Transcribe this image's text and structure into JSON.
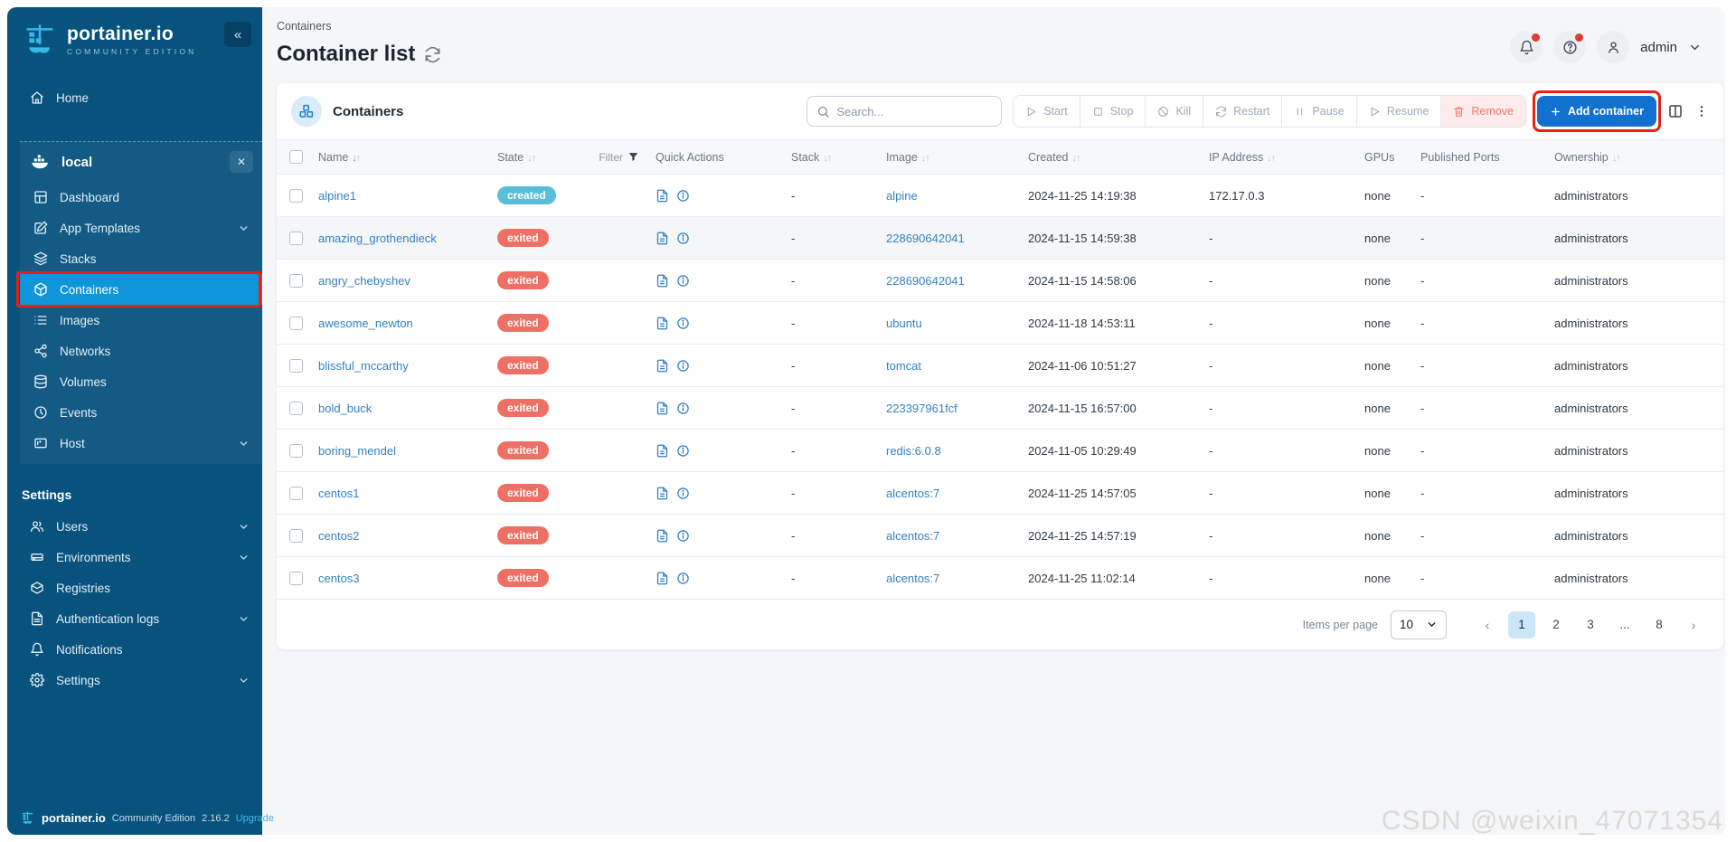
{
  "sidebar": {
    "logo_title": "portainer.io",
    "logo_subtitle": "COMMUNITY EDITION",
    "collapse_icon": "«",
    "home_label": "Home",
    "environment": {
      "name": "local",
      "items": [
        {
          "label": "Dashboard"
        },
        {
          "label": "App Templates",
          "chevron": true
        },
        {
          "label": "Stacks"
        },
        {
          "label": "Containers",
          "active": true,
          "annotated": true
        },
        {
          "label": "Images"
        },
        {
          "label": "Networks"
        },
        {
          "label": "Volumes"
        },
        {
          "label": "Events"
        },
        {
          "label": "Host",
          "chevron": true
        }
      ]
    },
    "settings_section": {
      "label": "Settings",
      "items": [
        {
          "label": "Users",
          "chevron": true
        },
        {
          "label": "Environments",
          "chevron": true
        },
        {
          "label": "Registries"
        },
        {
          "label": "Authentication logs",
          "chevron": true
        },
        {
          "label": "Notifications"
        },
        {
          "label": "Settings",
          "chevron": true
        }
      ]
    },
    "footer": {
      "brand": "portainer.io",
      "edition": "Community Edition",
      "version": "2.16.2",
      "upgrade_label": "Upgrade"
    }
  },
  "header": {
    "breadcrumb": "Containers",
    "title": "Container list",
    "user_name": "admin"
  },
  "toolbar": {
    "panel_title": "Containers",
    "search_placeholder": "Search...",
    "search_value": "",
    "actions": [
      "Start",
      "Stop",
      "Kill",
      "Restart",
      "Pause",
      "Resume",
      "Remove"
    ],
    "add_container_label": "Add container"
  },
  "table": {
    "headers": {
      "name": "Name",
      "state": "State",
      "filter": "Filter",
      "quick_actions": "Quick Actions",
      "stack": "Stack",
      "image": "Image",
      "created": "Created",
      "ip": "IP Address",
      "gpus": "GPUs",
      "ports": "Published Ports",
      "ownership": "Ownership"
    },
    "rows": [
      {
        "name": "alpine1",
        "state": "created",
        "stack": "-",
        "image": "alpine",
        "created": "2024-11-25 14:19:38",
        "ip": "172.17.0.3",
        "gpus": "none",
        "ports": "-",
        "ownership": "administrators"
      },
      {
        "name": "amazing_grothendieck",
        "state": "exited",
        "stack": "-",
        "image": "228690642041",
        "created": "2024-11-15 14:59:38",
        "ip": "-",
        "gpus": "none",
        "ports": "-",
        "ownership": "administrators",
        "hover": true
      },
      {
        "name": "angry_chebyshev",
        "state": "exited",
        "stack": "-",
        "image": "228690642041",
        "created": "2024-11-15 14:58:06",
        "ip": "-",
        "gpus": "none",
        "ports": "-",
        "ownership": "administrators"
      },
      {
        "name": "awesome_newton",
        "state": "exited",
        "stack": "-",
        "image": "ubuntu",
        "created": "2024-11-18 14:53:11",
        "ip": "-",
        "gpus": "none",
        "ports": "-",
        "ownership": "administrators"
      },
      {
        "name": "blissful_mccarthy",
        "state": "exited",
        "stack": "-",
        "image": "tomcat",
        "created": "2024-11-06 10:51:27",
        "ip": "-",
        "gpus": "none",
        "ports": "-",
        "ownership": "administrators"
      },
      {
        "name": "bold_buck",
        "state": "exited",
        "stack": "-",
        "image": "223397961fcf",
        "created": "2024-11-15 16:57:00",
        "ip": "-",
        "gpus": "none",
        "ports": "-",
        "ownership": "administrators"
      },
      {
        "name": "boring_mendel",
        "state": "exited",
        "stack": "-",
        "image": "redis:6.0.8",
        "created": "2024-11-05 10:29:49",
        "ip": "-",
        "gpus": "none",
        "ports": "-",
        "ownership": "administrators"
      },
      {
        "name": "centos1",
        "state": "exited",
        "stack": "-",
        "image": "alcentos:7",
        "created": "2024-11-25 14:57:05",
        "ip": "-",
        "gpus": "none",
        "ports": "-",
        "ownership": "administrators"
      },
      {
        "name": "centos2",
        "state": "exited",
        "stack": "-",
        "image": "alcentos:7",
        "created": "2024-11-25 14:57:19",
        "ip": "-",
        "gpus": "none",
        "ports": "-",
        "ownership": "administrators"
      },
      {
        "name": "centos3",
        "state": "exited",
        "stack": "-",
        "image": "alcentos:7",
        "created": "2024-11-25 11:02:14",
        "ip": "-",
        "gpus": "none",
        "ports": "-",
        "ownership": "administrators"
      }
    ]
  },
  "pagination": {
    "items_per_page_label": "Items per page",
    "per_page": "10",
    "pages": [
      "1",
      "2",
      "3",
      "...",
      "8"
    ],
    "active_page": "1",
    "prev": "‹",
    "next": "›"
  },
  "colors": {
    "sidebar_bg": "#07537e",
    "active_item": "#0d96d9",
    "annotation_red": "#e52017",
    "primary_button": "#1270cf",
    "badge_created": "#59bed8",
    "badge_exited": "#ee6f64",
    "link": "#3481c2"
  },
  "watermark": "CSDN @weixin_47071354"
}
